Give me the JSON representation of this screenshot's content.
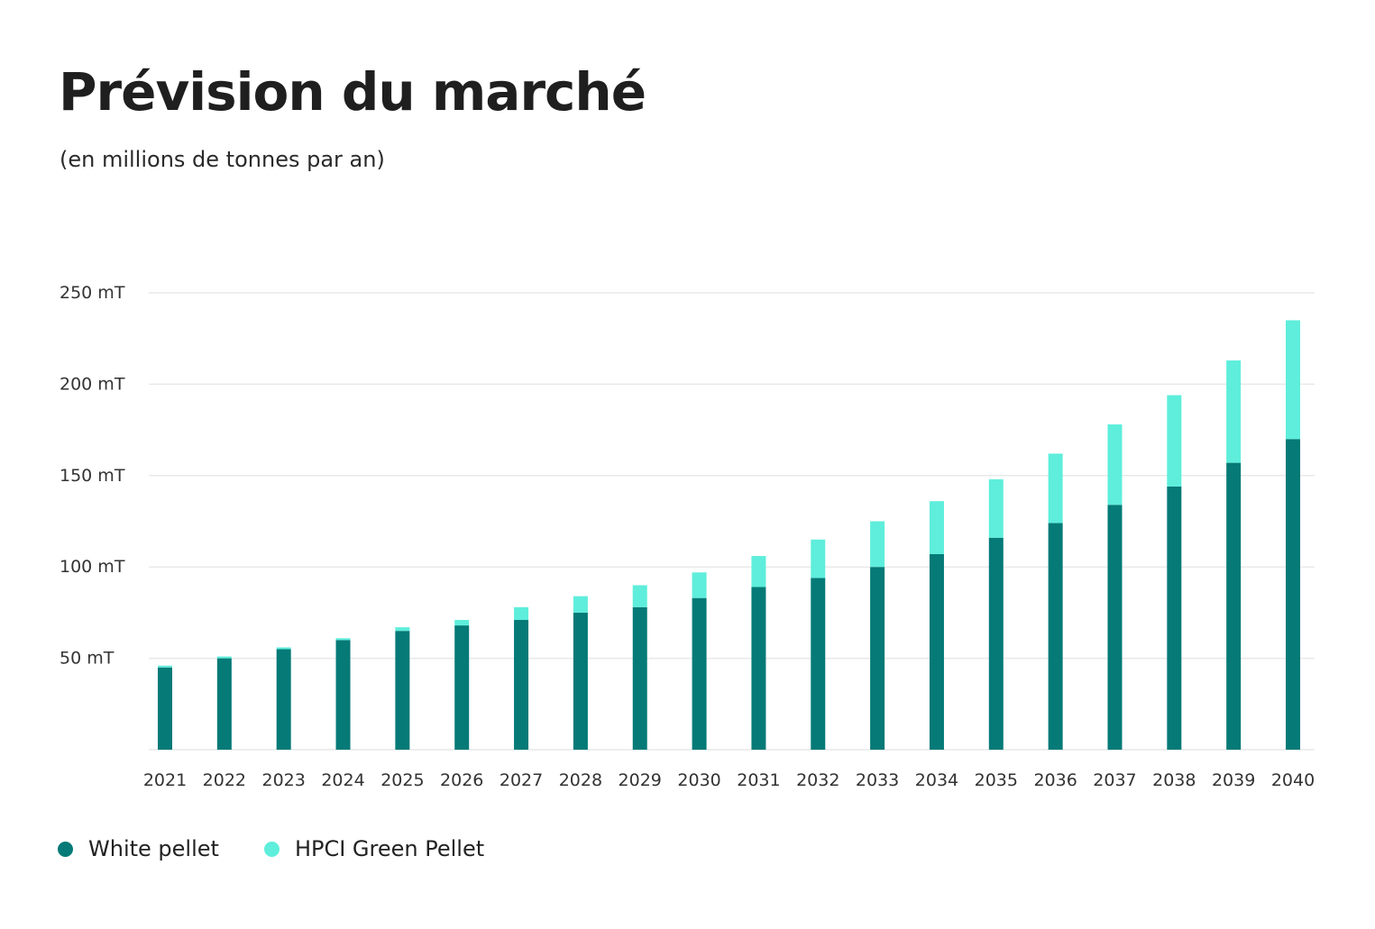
{
  "title": "Prévision du marché",
  "subtitle": "(en millions de tonnes par an)",
  "colors": {
    "white_pellet": "#057a77",
    "green_pellet": "#5eeedb",
    "grid": "#e9e9e9",
    "axis_text": "#333333"
  },
  "chart_data": {
    "type": "bar",
    "stacked": true,
    "categories": [
      "2021",
      "2022",
      "2023",
      "2024",
      "2025",
      "2026",
      "2027",
      "2028",
      "2029",
      "2030",
      "2031",
      "2032",
      "2033",
      "2034",
      "2035",
      "2036",
      "2037",
      "2038",
      "2039",
      "2040"
    ],
    "series": [
      {
        "name": "White pellet",
        "color": "#057a77",
        "values": [
          45,
          50,
          55,
          60,
          65,
          68,
          71,
          75,
          78,
          83,
          89,
          94,
          100,
          107,
          116,
          124,
          134,
          144,
          157,
          170
        ]
      },
      {
        "name": "HPCI Green Pellet",
        "color": "#5eeedb",
        "values": [
          1,
          1,
          1,
          1,
          2,
          3,
          7,
          9,
          12,
          14,
          17,
          21,
          25,
          29,
          32,
          38,
          44,
          50,
          56,
          65
        ]
      }
    ],
    "yticks": [
      50,
      100,
      150,
      200,
      250
    ],
    "ytick_labels": [
      "50 mT",
      "100 mT",
      "150 mT",
      "200 mT",
      "250 mT"
    ],
    "ylim": [
      0,
      250
    ],
    "grid": true,
    "legend_position": "bottom-left"
  }
}
